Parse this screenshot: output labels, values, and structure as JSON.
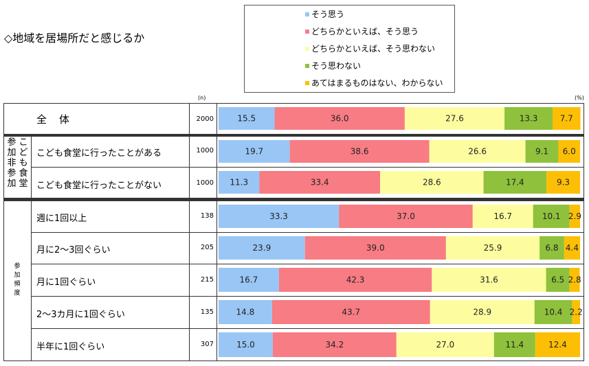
{
  "title": "◇地域を居場所だと感じるか",
  "units": {
    "n": "(n)",
    "percent": "(%)"
  },
  "colors": [
    "#99c6f5",
    "#f77c84",
    "#fdfd9f",
    "#8fc13c",
    "#fcbf06"
  ],
  "groups": {
    "participation": [
      "参",
      "加",
      "非",
      "参",
      "加"
    ],
    "cafeteria": [
      "こ",
      "ど",
      "も",
      "食",
      "堂"
    ],
    "frequency": [
      "参",
      "加",
      "頻",
      "度"
    ]
  },
  "chart_data": {
    "type": "bar",
    "orientation": "horizontal",
    "stacked": true,
    "title": "◇地域を居場所だと感じるか",
    "legend": {
      "placement": "top-right",
      "labels": [
        "そう思う",
        "どちらかといえば、そう思う",
        "どちらかといえば、そう思わない",
        "そう思わない",
        "あてはまるものはない、わからない"
      ]
    },
    "categories": [
      "全体",
      "こども食堂に行ったことがある",
      "こども食堂に行ったことがない",
      "週に1回以上",
      "月に2～3回ぐらい",
      "月に1回ぐらい",
      "2～3カ月に1回ぐらい",
      "半年に1回ぐらい"
    ],
    "n": [
      2000,
      1000,
      1000,
      138,
      205,
      215,
      135,
      307
    ],
    "series": [
      {
        "name": "そう思う",
        "values": [
          15.5,
          19.7,
          11.3,
          33.3,
          23.9,
          16.7,
          14.8,
          15.0
        ],
        "labels": [
          "15.5",
          "19.7",
          "11.3",
          "33.3",
          "23.9",
          "16.7",
          "14.8",
          "15.0"
        ]
      },
      {
        "name": "どちらかといえば、そう思う",
        "values": [
          36.0,
          38.6,
          33.4,
          37.0,
          39.0,
          42.3,
          43.7,
          34.2
        ],
        "labels": [
          "36.0",
          "38.6",
          "33.4",
          "37.0",
          "39.0",
          "42.3",
          "43.7",
          "34.2"
        ]
      },
      {
        "name": "どちらかといえば、そう思わない",
        "values": [
          27.6,
          26.6,
          28.6,
          16.7,
          25.9,
          31.6,
          28.9,
          27.0
        ],
        "labels": [
          "27.6",
          "26.6",
          "28.6",
          "16.7",
          "25.9",
          "31.6",
          "28.9",
          "27.0"
        ]
      },
      {
        "name": "そう思わない",
        "values": [
          13.3,
          9.1,
          17.4,
          10.1,
          6.8,
          6.5,
          10.4,
          11.4
        ],
        "labels": [
          "13.3",
          "9.1",
          "17.4",
          "10.1",
          "6.8",
          "6.5",
          "10.4",
          "11.4"
        ]
      },
      {
        "name": "あてはまるものはない、わからない",
        "values": [
          7.7,
          6.0,
          9.3,
          2.9,
          4.4,
          2.8,
          2.2,
          12.4
        ],
        "labels": [
          "7.7",
          "6.0",
          "9.3",
          "2.9",
          "4.4",
          "2.8",
          "2.2",
          "12.4"
        ]
      }
    ],
    "xlim": [
      0,
      100
    ],
    "xlabel": "",
    "ylabel": ""
  }
}
